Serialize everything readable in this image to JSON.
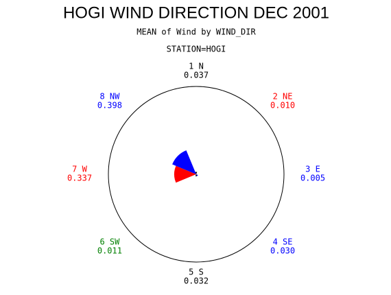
{
  "chart_data": {
    "type": "star",
    "title": "HOGI WIND DIRECTION DEC 2001",
    "subtitle": "MEAN of Wind by WIND_DIR",
    "station": "STATION=HOGI",
    "categories": [
      "1 N",
      "2 NE",
      "3 E",
      "4 SE",
      "5 S",
      "6 SW",
      "7 W",
      "8 NW"
    ],
    "values": [
      0.037,
      0.01,
      0.005,
      0.03,
      0.032,
      0.011,
      0.337,
      0.398
    ],
    "value_labels": [
      "0.037",
      "0.010",
      "0.005",
      "0.030",
      "0.032",
      "0.011",
      "0.337",
      "0.398"
    ],
    "colors": [
      "#000000",
      "#ff0000",
      "#0000ff",
      "#0000ff",
      "#000000",
      "#008000",
      "#ff0000",
      "#0000ff"
    ]
  }
}
